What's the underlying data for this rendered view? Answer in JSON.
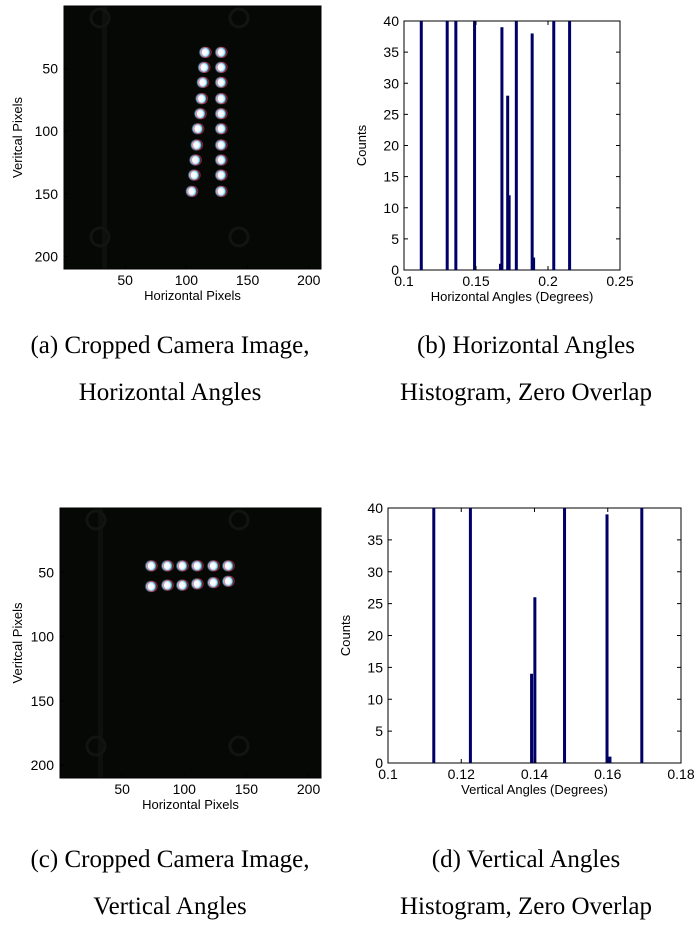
{
  "colors": {
    "image_bg": "#060806",
    "bar": "#000066",
    "axis": "#000000"
  },
  "panels": [
    {
      "id": "a",
      "caption_line1": "(a) Cropped Camera Image,",
      "caption_line2": "Horizontal Angles"
    },
    {
      "id": "b",
      "caption_line1": "(b) Horizontal Angles",
      "caption_line2": "Histogram, Zero Overlap"
    },
    {
      "id": "c",
      "caption_line1": "(c) Cropped Camera Image,",
      "caption_line2": "Vertical Angles"
    },
    {
      "id": "d",
      "caption_line1": "(d) Vertical Angles",
      "caption_line2": "Histogram, Zero Overlap"
    }
  ],
  "chart_data": [
    {
      "panel": "a",
      "type": "heatmap",
      "xlabel": "Horizontal Pixels",
      "ylabel": "Veritcal Pixels",
      "xlim": [
        0,
        210
      ],
      "ylim": [
        210,
        0
      ],
      "xticks": [
        "50",
        "100",
        "150",
        "200"
      ],
      "yticks": [
        "50",
        "100",
        "150",
        "200"
      ],
      "spots": [
        {
          "x": 115,
          "y": 37
        },
        {
          "x": 128,
          "y": 37
        },
        {
          "x": 114,
          "y": 49
        },
        {
          "x": 128,
          "y": 49
        },
        {
          "x": 113,
          "y": 61
        },
        {
          "x": 128,
          "y": 61
        },
        {
          "x": 112,
          "y": 74
        },
        {
          "x": 128,
          "y": 74
        },
        {
          "x": 111,
          "y": 86
        },
        {
          "x": 128,
          "y": 86
        },
        {
          "x": 109,
          "y": 98
        },
        {
          "x": 128,
          "y": 98
        },
        {
          "x": 108,
          "y": 111
        },
        {
          "x": 128,
          "y": 111
        },
        {
          "x": 107,
          "y": 123
        },
        {
          "x": 128,
          "y": 123
        },
        {
          "x": 106,
          "y": 135
        },
        {
          "x": 128,
          "y": 135
        },
        {
          "x": 104,
          "y": 148
        },
        {
          "x": 128,
          "y": 148
        }
      ]
    },
    {
      "panel": "b",
      "type": "bar",
      "xlabel": "Horizontal Angles (Degrees)",
      "ylabel": "Counts",
      "xlim": [
        0.1,
        0.25
      ],
      "ylim": [
        0,
        40
      ],
      "xticks": [
        "0.1",
        "0.15",
        "0.2",
        "0.25"
      ],
      "yticks": [
        "0",
        "5",
        "10",
        "15",
        "20",
        "25",
        "30",
        "35",
        "40"
      ],
      "bars": [
        {
          "x": 0.112,
          "count": 40
        },
        {
          "x": 0.13,
          "count": 40
        },
        {
          "x": 0.136,
          "count": 40
        },
        {
          "x": 0.149,
          "count": 40
        },
        {
          "x": 0.167,
          "count": 1
        },
        {
          "x": 0.168,
          "count": 39
        },
        {
          "x": 0.172,
          "count": 28
        },
        {
          "x": 0.173,
          "count": 12
        },
        {
          "x": 0.178,
          "count": 40
        },
        {
          "x": 0.189,
          "count": 38
        },
        {
          "x": 0.19,
          "count": 2
        },
        {
          "x": 0.204,
          "count": 40
        },
        {
          "x": 0.215,
          "count": 40
        }
      ]
    },
    {
      "panel": "c",
      "type": "heatmap",
      "xlabel": "Horizontal Pixels",
      "ylabel": "Veritcal Pixels",
      "xlim": [
        0,
        210
      ],
      "ylim": [
        210,
        0
      ],
      "xticks": [
        "50",
        "100",
        "150",
        "200"
      ],
      "yticks": [
        "50",
        "100",
        "150",
        "200"
      ],
      "spots": [
        {
          "x": 73,
          "y": 45
        },
        {
          "x": 86,
          "y": 45
        },
        {
          "x": 98,
          "y": 45
        },
        {
          "x": 110,
          "y": 45
        },
        {
          "x": 123,
          "y": 45
        },
        {
          "x": 135,
          "y": 45
        },
        {
          "x": 73,
          "y": 61
        },
        {
          "x": 86,
          "y": 60
        },
        {
          "x": 98,
          "y": 60
        },
        {
          "x": 110,
          "y": 59
        },
        {
          "x": 123,
          "y": 58
        },
        {
          "x": 135,
          "y": 57
        }
      ]
    },
    {
      "panel": "d",
      "type": "bar",
      "xlabel": "Vertical Angles (Degrees)",
      "ylabel": "Counts",
      "xlim": [
        0.1,
        0.18
      ],
      "ylim": [
        0,
        40
      ],
      "xticks": [
        "0.1",
        "0.12",
        "0.14",
        "0.16",
        "0.18"
      ],
      "yticks": [
        "0",
        "5",
        "10",
        "15",
        "20",
        "25",
        "30",
        "35",
        "40"
      ],
      "bars": [
        {
          "x": 0.1125,
          "count": 40
        },
        {
          "x": 0.1225,
          "count": 40
        },
        {
          "x": 0.1392,
          "count": 14
        },
        {
          "x": 0.1401,
          "count": 26
        },
        {
          "x": 0.1482,
          "count": 40
        },
        {
          "x": 0.1598,
          "count": 39
        },
        {
          "x": 0.1606,
          "count": 1
        },
        {
          "x": 0.1693,
          "count": 40
        }
      ]
    }
  ]
}
